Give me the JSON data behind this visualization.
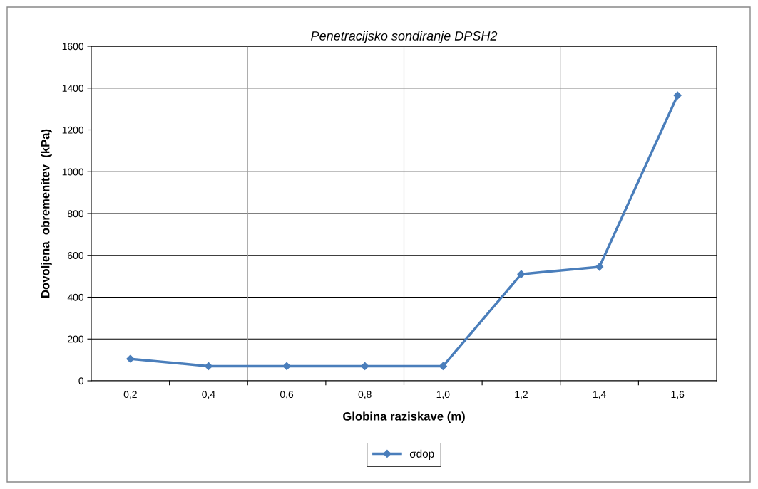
{
  "chart_data": {
    "type": "line",
    "title": "Penetracijsko sondiranje DPSH2",
    "xlabel": "Globina raziskave (m)",
    "ylabel": "Dovoljena  obremenitev  (kPa)",
    "categories": [
      "0,2",
      "0,4",
      "0,6",
      "0,8",
      "1,0",
      "1,2",
      "1,4",
      "1,6"
    ],
    "series": [
      {
        "name": "σdop",
        "color": "#4a7ebb",
        "values": [
          105,
          70,
          70,
          70,
          70,
          510,
          545,
          1365
        ]
      }
    ],
    "ylim": [
      0,
      1600
    ],
    "yticks": [
      0,
      200,
      400,
      600,
      800,
      1000,
      1200,
      1400,
      1600
    ],
    "grid": true,
    "legend": "bottom",
    "marker": "diamond",
    "line_style": "solid"
  }
}
